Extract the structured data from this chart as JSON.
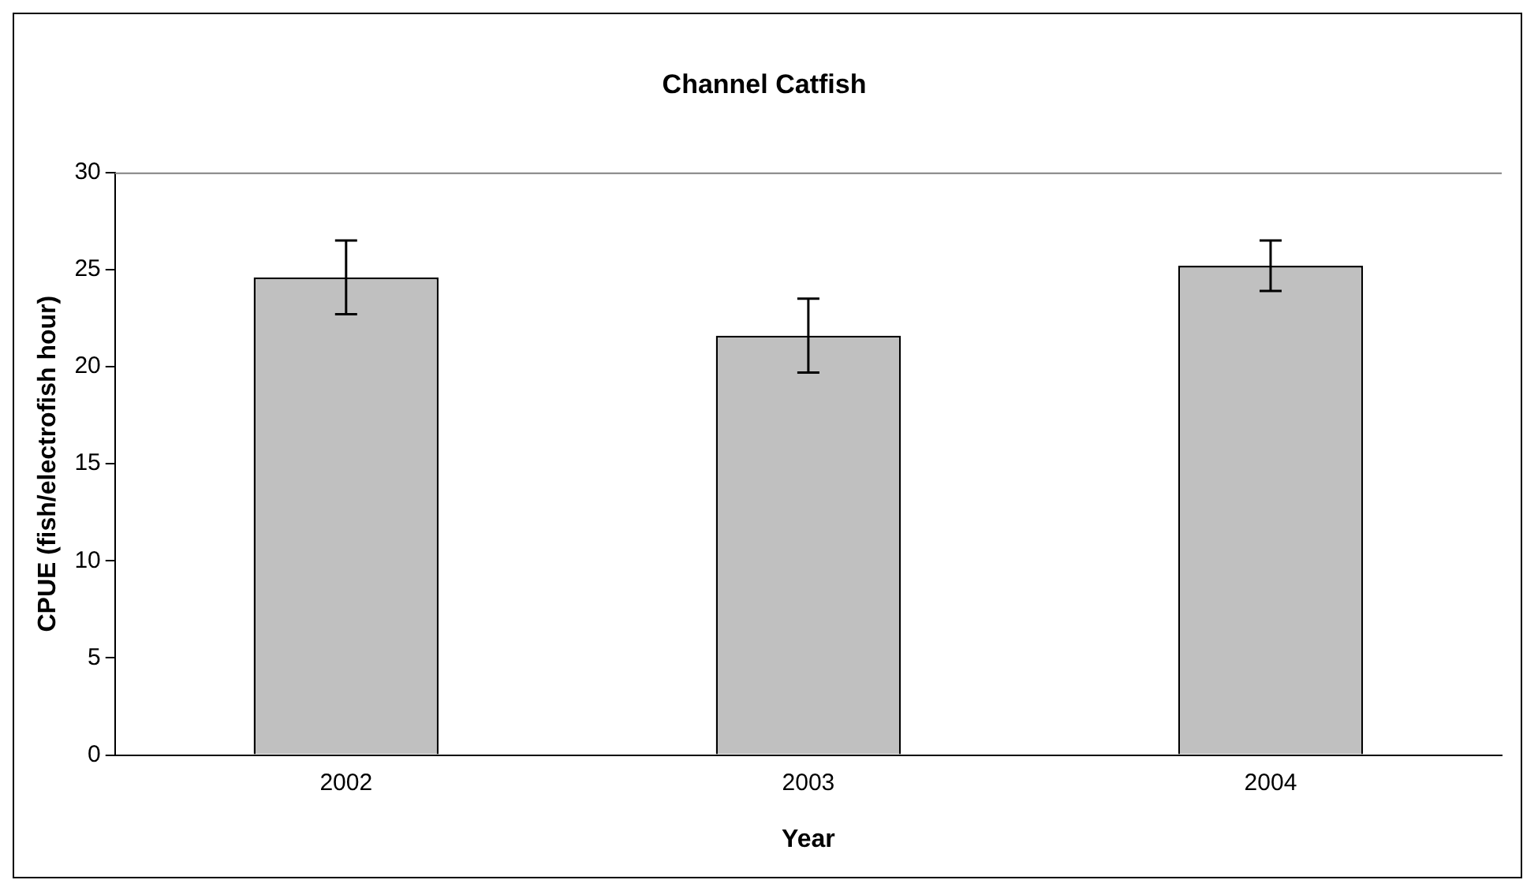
{
  "chart_data": {
    "type": "bar",
    "title": "Channel Catfish",
    "xlabel": "Year",
    "ylabel": "CPUE (fish/electrofish hour)",
    "categories": [
      "2002",
      "2003",
      "2004"
    ],
    "values": [
      24.6,
      21.6,
      25.2
    ],
    "errors": [
      1.9,
      1.9,
      1.3
    ],
    "color": "#c0c0c0",
    "ylim": [
      0,
      30
    ],
    "yticks": [
      0,
      5,
      10,
      15,
      20,
      25,
      30
    ],
    "grid": false,
    "legend": false
  }
}
